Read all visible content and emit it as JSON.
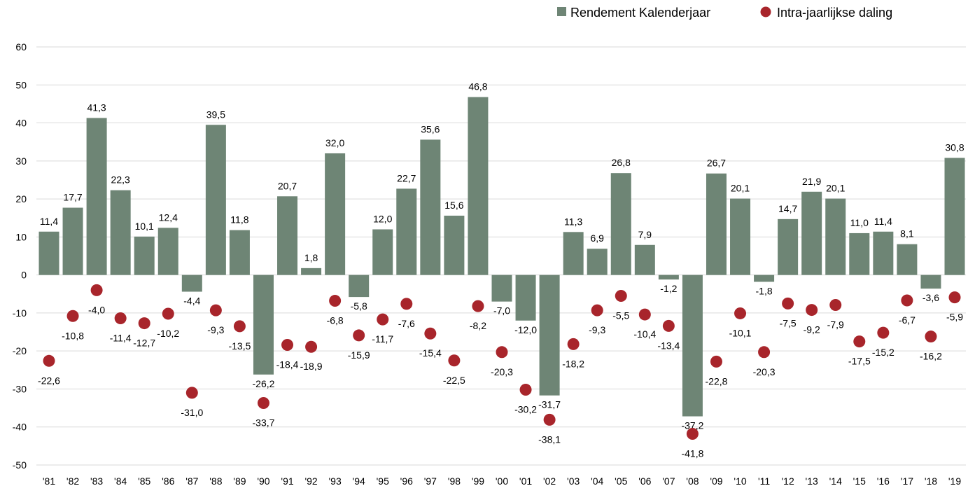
{
  "chart_data": {
    "type": "bar",
    "title": "",
    "xlabel": "",
    "ylabel": "",
    "ylim": [
      -50,
      60
    ],
    "y_ticks": [
      "60",
      "50",
      "40",
      "30",
      "20",
      "10",
      "0",
      "-10",
      "-20",
      "-30",
      "-40",
      "-50"
    ],
    "grid": "horizontal",
    "legend_position": "top-right",
    "categories": [
      "'81",
      "'82",
      "'83",
      "'84",
      "'85",
      "'86",
      "'87",
      "'88",
      "'89",
      "'90",
      "'91",
      "'92",
      "'93",
      "'94",
      "'95",
      "'96",
      "'97",
      "'98",
      "'99",
      "'00",
      "'01",
      "'02",
      "'03",
      "'04",
      "'05",
      "'06",
      "'07",
      "'08",
      "'09",
      "'10",
      "'11",
      "'12",
      "'13",
      "'14",
      "'15",
      "'16",
      "'17",
      "'18",
      "'19"
    ],
    "series": [
      {
        "name": "Rendement Kalenderjaar",
        "type": "bar",
        "color": "#6e8575",
        "values": [
          11.4,
          17.7,
          41.3,
          22.3,
          10.1,
          12.4,
          -4.4,
          39.5,
          11.8,
          -26.2,
          20.7,
          1.8,
          32.0,
          -5.8,
          12.0,
          22.7,
          35.6,
          15.6,
          46.8,
          -7.0,
          -12.0,
          -31.7,
          11.3,
          6.9,
          26.8,
          7.9,
          -1.2,
          -37.2,
          26.7,
          20.1,
          -1.8,
          14.7,
          21.9,
          20.1,
          11.0,
          11.4,
          8.1,
          -3.6,
          30.8
        ],
        "labels": [
          "11,4",
          "17,7",
          "41,3",
          "22,3",
          "10,1",
          "12,4",
          "-4,4",
          "39,5",
          "11,8",
          "-26,2",
          "20,7",
          "1,8",
          "32,0",
          "-5,8",
          "12,0",
          "22,7",
          "35,6",
          "15,6",
          "46,8",
          "-7,0",
          "-12,0",
          "-31,7",
          "11,3",
          "6,9",
          "26,8",
          "7,9",
          "-1,2",
          "-37,2",
          "26,7",
          "20,1",
          "-1,8",
          "14,7",
          "21,9",
          "20,1",
          "11,0",
          "11,4",
          "8,1",
          "-3,6",
          "30,8"
        ]
      },
      {
        "name": "Intra-jaarlijkse daling",
        "type": "scatter",
        "color": "#a8252b",
        "values": [
          -22.6,
          -10.8,
          -4.0,
          -11.4,
          -12.7,
          -10.2,
          -31.0,
          -9.3,
          -13.5,
          -33.7,
          -18.4,
          -18.9,
          -6.8,
          -15.9,
          -11.7,
          -7.6,
          -15.4,
          -22.5,
          -8.2,
          -20.3,
          -30.2,
          -38.1,
          -18.2,
          -9.3,
          -5.5,
          -10.4,
          -13.4,
          -41.8,
          -22.8,
          -10.1,
          -20.3,
          -7.5,
          -9.2,
          -7.9,
          -17.5,
          -15.2,
          -6.7,
          -16.2,
          -5.9
        ],
        "labels": [
          "-22,6",
          "-10,8",
          "-4,0",
          "-11,4",
          "-12,7",
          "-10,2",
          "-31,0",
          "-9,3",
          "-13,5",
          "-33,7",
          "-18,4",
          "-18,9",
          "-6,8",
          "-15,9",
          "-11,7",
          "-7,6",
          "-15,4",
          "-22,5",
          "-8,2",
          "-20,3",
          "-30,2",
          "-38,1",
          "-18,2",
          "-9,3",
          "-5,5",
          "-10,4",
          "-13,4",
          "-41,8",
          "-22,8",
          "-10,1",
          "-20,3",
          "-7,5",
          "-9,2",
          "-7,9",
          "-17,5",
          "-15,2",
          "-6,7",
          "-16,2",
          "-5,9"
        ]
      }
    ]
  }
}
